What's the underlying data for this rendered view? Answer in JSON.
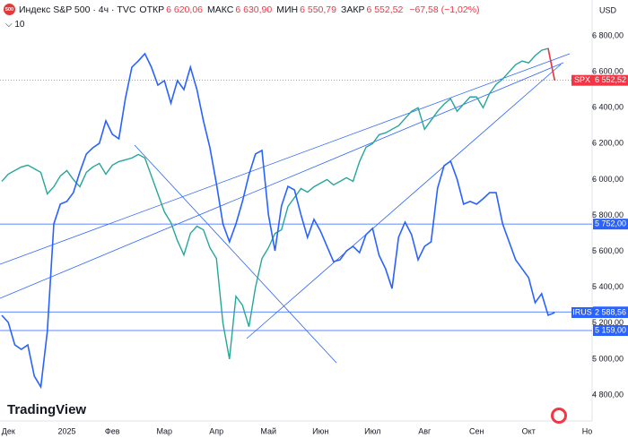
{
  "chart_data": {
    "type": "line",
    "title": "Индекс S&P 500 · 4ч · TVC",
    "logo": "500",
    "ohlc": [
      {
        "key": "ОТКР",
        "value": "6 620,06"
      },
      {
        "key": "МАКС",
        "value": "6 630,90"
      },
      {
        "key": "МИН",
        "value": "6 550,79"
      },
      {
        "key": "ЗАКР",
        "value": "6 552,52"
      }
    ],
    "change": "−67,58 (−1,02%)",
    "indicator_count": 10,
    "currency": "USD",
    "brand": "TradingView",
    "categories": [
      null,
      "Дек",
      null,
      null,
      null,
      null,
      null,
      null,
      null,
      null,
      "2025",
      null,
      null,
      null,
      null,
      null,
      null,
      "Фев",
      null,
      null,
      null,
      null,
      null,
      null,
      null,
      "Мар",
      null,
      null,
      null,
      null,
      null,
      null,
      null,
      "Апр",
      null,
      null,
      null,
      null,
      null,
      null,
      null,
      "Май",
      null,
      null,
      null,
      null,
      null,
      null,
      null,
      "Июн",
      null,
      null,
      null,
      null,
      null,
      null,
      null,
      "Июл",
      null,
      null,
      null,
      null,
      null,
      null,
      null,
      "Авг",
      null,
      null,
      null,
      null,
      null,
      null,
      null,
      "Сен",
      null,
      null,
      null,
      null,
      null,
      null,
      null,
      "Окт",
      null,
      null,
      null,
      null,
      null,
      null,
      null,
      null,
      "Но"
    ],
    "series": [
      {
        "name": "SPX",
        "color": "#26a69a",
        "last_color": "#f23645",
        "badge_label": "6 552,52",
        "values": [
          5990,
          6030,
          6050,
          6070,
          6080,
          6060,
          6040,
          5920,
          5960,
          6020,
          6050,
          6000,
          5960,
          6040,
          6070,
          6090,
          6030,
          6080,
          6100,
          6110,
          6120,
          6140,
          6120,
          6020,
          5920,
          5820,
          5760,
          5660,
          5580,
          5700,
          5740,
          5720,
          5620,
          5560,
          5200,
          5000,
          5350,
          5300,
          5180,
          5400,
          5560,
          5620,
          5700,
          5720,
          5850,
          5900,
          5950,
          5930,
          5960,
          5980,
          6000,
          5970,
          5990,
          6010,
          5990,
          6100,
          6180,
          6200,
          6250,
          6260,
          6280,
          6300,
          6340,
          6380,
          6400,
          6280,
          6330,
          6380,
          6420,
          6450,
          6380,
          6420,
          6460,
          6460,
          6400,
          6480,
          6530,
          6560,
          6600,
          6640,
          6660,
          6650,
          6690,
          6720,
          6730,
          6552.52,
          null,
          null,
          null,
          null,
          null
        ]
      },
      {
        "name": "IRUS",
        "color": "#2962ff",
        "badge_label": "2 588,56",
        "values": [
          5244,
          5204,
          5079,
          5054,
          5079,
          4905,
          4845,
          5154,
          5753,
          5863,
          5878,
          5927,
          6042,
          6142,
          6177,
          6202,
          6327,
          6252,
          6227,
          6451,
          6626,
          6661,
          6701,
          6626,
          6526,
          6551,
          6426,
          6551,
          6501,
          6626,
          6501,
          6327,
          6177,
          5977,
          5753,
          5653,
          5753,
          5878,
          6027,
          6142,
          6162,
          5803,
          5603,
          5853,
          5962,
          5942,
          5803,
          5678,
          5778,
          5713,
          5628,
          5543,
          5553,
          5603,
          5628,
          5593,
          5693,
          5728,
          5578,
          5503,
          5393,
          5678,
          5763,
          5693,
          5553,
          5628,
          5653,
          5952,
          6077,
          6102,
          6002,
          5863,
          5878,
          5863,
          5893,
          5927,
          5927,
          5753,
          5653,
          5553,
          5503,
          5453,
          5314,
          5364,
          5244,
          5259,
          null,
          null,
          null,
          null,
          null
        ]
      }
    ],
    "hlines": [
      {
        "value": 5752,
        "label": "5 752,00"
      },
      {
        "value": 5262.5,
        "label": "5 262,50"
      },
      {
        "value": 5159,
        "label": "5 159,00"
      }
    ],
    "ylim": [
      4755,
      7000
    ],
    "yticks": [
      {
        "value": 4800,
        "label": "4 800,00"
      },
      {
        "value": 5000,
        "label": "5 000,00"
      },
      {
        "value": 5200,
        "label": "5 200,00"
      },
      {
        "value": 5400,
        "label": "5 400,00"
      },
      {
        "value": 5600,
        "label": "5 600,00"
      },
      {
        "value": 5800,
        "label": "5 800,00"
      },
      {
        "value": 6000,
        "label": "6 000,00"
      },
      {
        "value": 6200,
        "label": "6 200,00"
      },
      {
        "value": 6400,
        "label": "6 400,00"
      },
      {
        "value": 6600,
        "label": "6 600,00"
      },
      {
        "value": 6800,
        "label": "6 800,00"
      }
    ],
    "grid": false
  }
}
